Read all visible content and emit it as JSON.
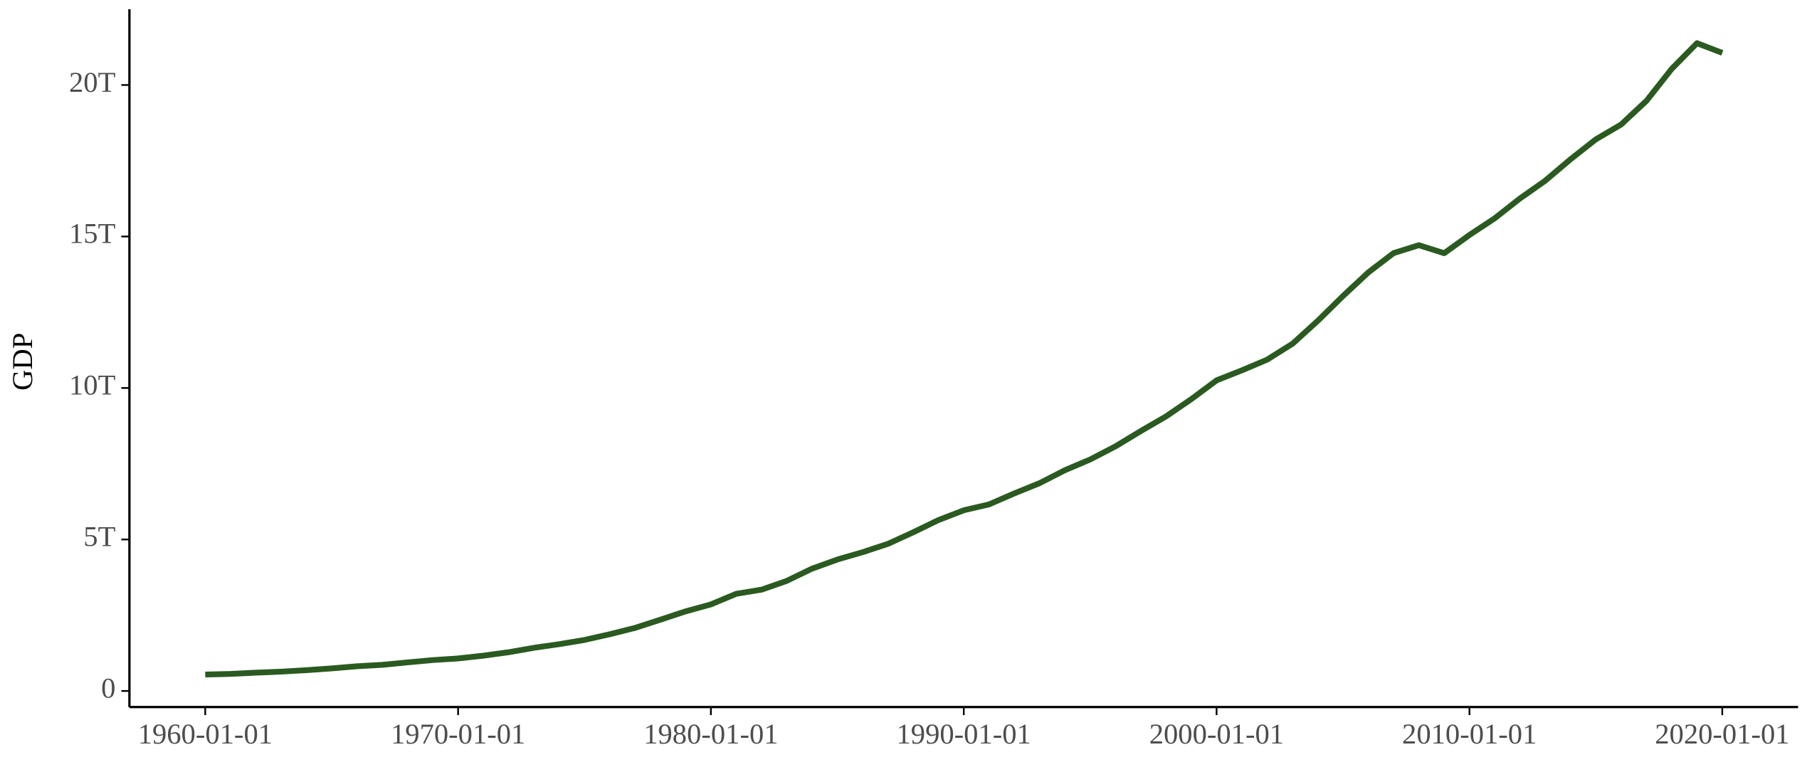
{
  "chart_data": {
    "type": "line",
    "y_label": "GDP",
    "x": [
      "1960-01-01",
      "1961-01-01",
      "1962-01-01",
      "1963-01-01",
      "1964-01-01",
      "1965-01-01",
      "1966-01-01",
      "1967-01-01",
      "1968-01-01",
      "1969-01-01",
      "1970-01-01",
      "1971-01-01",
      "1972-01-01",
      "1973-01-01",
      "1974-01-01",
      "1975-01-01",
      "1976-01-01",
      "1977-01-01",
      "1978-01-01",
      "1979-01-01",
      "1980-01-01",
      "1981-01-01",
      "1982-01-01",
      "1983-01-01",
      "1984-01-01",
      "1985-01-01",
      "1986-01-01",
      "1987-01-01",
      "1988-01-01",
      "1989-01-01",
      "1990-01-01",
      "1991-01-01",
      "1992-01-01",
      "1993-01-01",
      "1994-01-01",
      "1995-01-01",
      "1996-01-01",
      "1997-01-01",
      "1998-01-01",
      "1999-01-01",
      "2000-01-01",
      "2001-01-01",
      "2002-01-01",
      "2003-01-01",
      "2004-01-01",
      "2005-01-01",
      "2006-01-01",
      "2007-01-01",
      "2008-01-01",
      "2009-01-01",
      "2010-01-01",
      "2011-01-01",
      "2012-01-01",
      "2013-01-01",
      "2014-01-01",
      "2015-01-01",
      "2016-01-01",
      "2017-01-01",
      "2018-01-01",
      "2019-01-01",
      "2020-01-01"
    ],
    "series": [
      {
        "name": "GDP",
        "color": "#2a5a20",
        "values": [
          0.543,
          0.563,
          0.605,
          0.638,
          0.686,
          0.744,
          0.815,
          0.862,
          0.943,
          1.019,
          1.073,
          1.165,
          1.279,
          1.425,
          1.545,
          1.684,
          1.873,
          2.082,
          2.352,
          2.627,
          2.857,
          3.207,
          3.343,
          3.634,
          4.037,
          4.339,
          4.58,
          4.855,
          5.236,
          5.642,
          5.963,
          6.158,
          6.52,
          6.859,
          7.287,
          7.64,
          8.073,
          8.578,
          9.063,
          9.631,
          10.252,
          10.582,
          10.936,
          11.458,
          12.214,
          13.037,
          13.815,
          14.452,
          14.713,
          14.449,
          15.049,
          15.6,
          16.254,
          16.843,
          17.551,
          18.206,
          18.695,
          19.477,
          20.533,
          21.381,
          21.06
        ]
      }
    ],
    "xlim": [
      "1957-01-01",
      "2023-01-01"
    ],
    "xticks": [
      "1960-01-01",
      "1970-01-01",
      "1980-01-01",
      "1990-01-01",
      "2000-01-01",
      "2010-01-01",
      "2020-01-01"
    ],
    "ylim": [
      -0.53,
      22.5
    ],
    "yticks": [
      0,
      {
        "value": 5,
        "label": "5T"
      },
      {
        "value": 10,
        "label": "10T"
      },
      {
        "value": 15,
        "label": "15T"
      },
      {
        "value": 20,
        "label": "20T"
      }
    ]
  }
}
